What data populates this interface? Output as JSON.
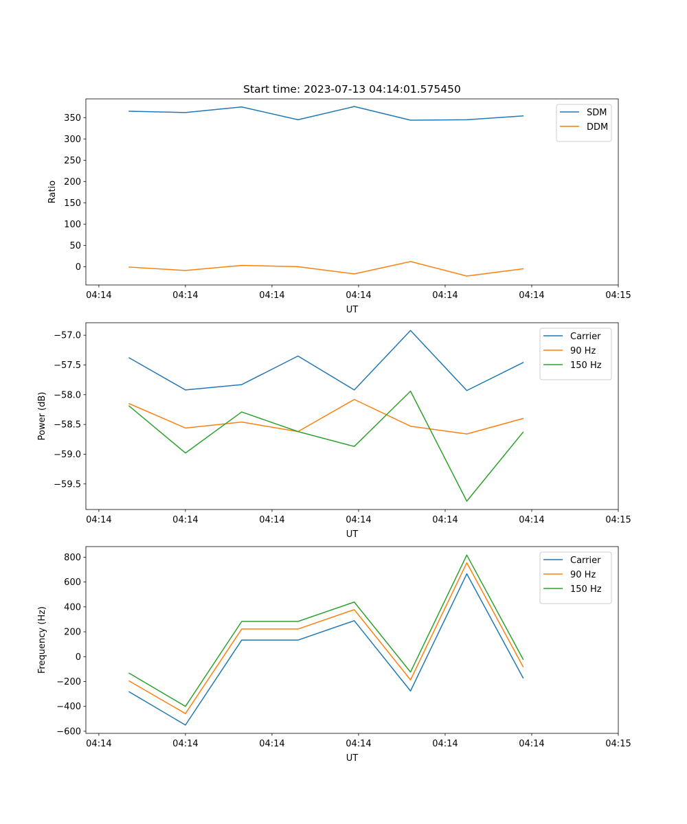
{
  "chart_data": [
    {
      "type": "line",
      "title": "Start time: 2023-07-13 04:14:01.575450",
      "xlabel": "UT",
      "ylabel": "Ratio",
      "x_tick_labels": [
        "04:14",
        "04:14",
        "04:14",
        "04:14",
        "04:14",
        "04:14",
        "04:15"
      ],
      "y_ticks": [
        0,
        50,
        100,
        150,
        200,
        250,
        300,
        350
      ],
      "y_tick_labels": [
        "0",
        "50",
        "100",
        "150",
        "200",
        "250",
        "300",
        "350"
      ],
      "ylim": [
        -43,
        394
      ],
      "x": [
        0.5,
        1.15,
        1.8,
        2.45,
        3.1,
        3.75,
        4.4,
        5.05
      ],
      "xlim": [
        0,
        6.15
      ],
      "series": [
        {
          "name": "SDM",
          "color": "#1f77b4",
          "values": [
            365,
            362,
            375,
            345,
            376,
            344,
            345,
            354
          ]
        },
        {
          "name": "DDM",
          "color": "#ff7f0e",
          "values": [
            -1,
            -9,
            3,
            0,
            -17,
            12,
            -22,
            -5
          ]
        }
      ],
      "legend": "top-right",
      "grid": false
    },
    {
      "type": "line",
      "title": "",
      "xlabel": "UT",
      "ylabel": "Power (dB)",
      "x_tick_labels": [
        "04:14",
        "04:14",
        "04:14",
        "04:14",
        "04:14",
        "04:14",
        "04:15"
      ],
      "y_ticks": [
        -57.0,
        -57.5,
        -58.0,
        -58.5,
        -59.0,
        -59.5
      ],
      "y_tick_labels": [
        "−57.0",
        "−57.5",
        "−58.0",
        "−58.5",
        "−59.0",
        "−59.5"
      ],
      "ylim": [
        -59.93,
        -56.79
      ],
      "x": [
        0.5,
        1.15,
        1.8,
        2.45,
        3.1,
        3.75,
        4.4,
        5.05
      ],
      "xlim": [
        0,
        6.15
      ],
      "series": [
        {
          "name": "Carrier",
          "color": "#1f77b4",
          "values": [
            -57.38,
            -57.92,
            -57.83,
            -57.35,
            -57.92,
            -56.92,
            -57.93,
            -57.46
          ]
        },
        {
          "name": "90 Hz",
          "color": "#ff7f0e",
          "values": [
            -58.15,
            -58.56,
            -58.46,
            -58.62,
            -58.08,
            -58.53,
            -58.66,
            -58.4
          ]
        },
        {
          "name": "150 Hz",
          "color": "#2ca02c",
          "values": [
            -58.19,
            -58.98,
            -58.29,
            -58.62,
            -58.87,
            -57.94,
            -59.79,
            -58.63
          ]
        }
      ],
      "legend": "top-right",
      "grid": false
    },
    {
      "type": "line",
      "title": "",
      "xlabel": "UT",
      "ylabel": "Frequency (Hz)",
      "x_tick_labels": [
        "04:14",
        "04:14",
        "04:14",
        "04:14",
        "04:14",
        "04:14",
        "04:15"
      ],
      "y_ticks": [
        -600,
        -400,
        -200,
        0,
        200,
        400,
        600,
        800
      ],
      "y_tick_labels": [
        "−600",
        "−400",
        "−200",
        "0",
        "200",
        "400",
        "600",
        "800"
      ],
      "ylim": [
        -617,
        885
      ],
      "x": [
        0.5,
        1.15,
        1.8,
        2.45,
        3.1,
        3.75,
        4.4,
        5.05
      ],
      "xlim": [
        0,
        6.15
      ],
      "series": [
        {
          "name": "Carrier",
          "color": "#1f77b4",
          "values": [
            -283,
            -550,
            133,
            133,
            289,
            -276,
            666,
            -171
          ]
        },
        {
          "name": "90 Hz",
          "color": "#ff7f0e",
          "values": [
            -196,
            -458,
            222,
            222,
            378,
            -187,
            755,
            -81
          ]
        },
        {
          "name": "150 Hz",
          "color": "#2ca02c",
          "values": [
            -133,
            -400,
            283,
            283,
            439,
            -124,
            817,
            -21
          ]
        }
      ],
      "legend": "top-right",
      "grid": false
    }
  ]
}
